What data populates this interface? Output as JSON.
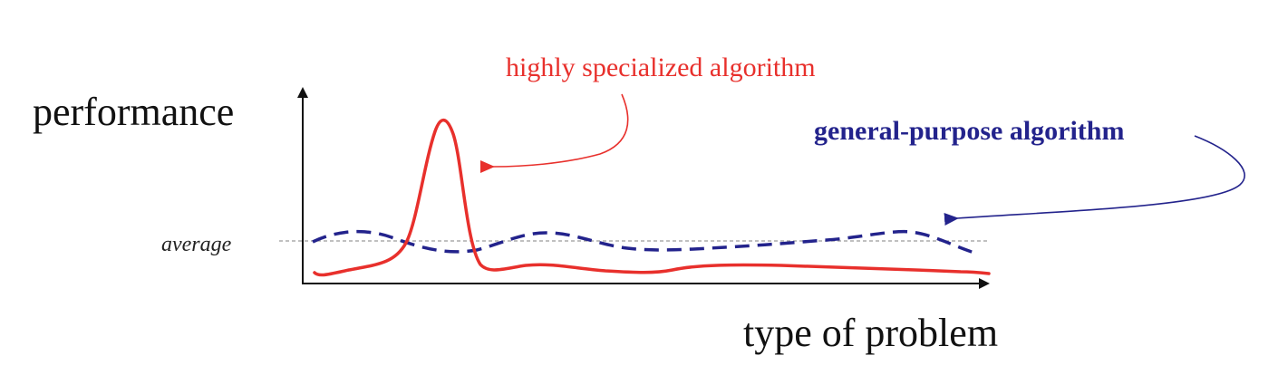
{
  "labels": {
    "y_axis": "performance",
    "x_axis": "type of problem",
    "average": "average",
    "specialized": "highly specialized algorithm",
    "general": "general-purpose algorithm"
  },
  "colors": {
    "specialized": "#e8302c",
    "general": "#23238c",
    "axis": "#111111",
    "average_line": "#9a9a9a"
  },
  "line_styles": {
    "specialized": "solid",
    "general": "dashed",
    "average": "dotted"
  }
}
